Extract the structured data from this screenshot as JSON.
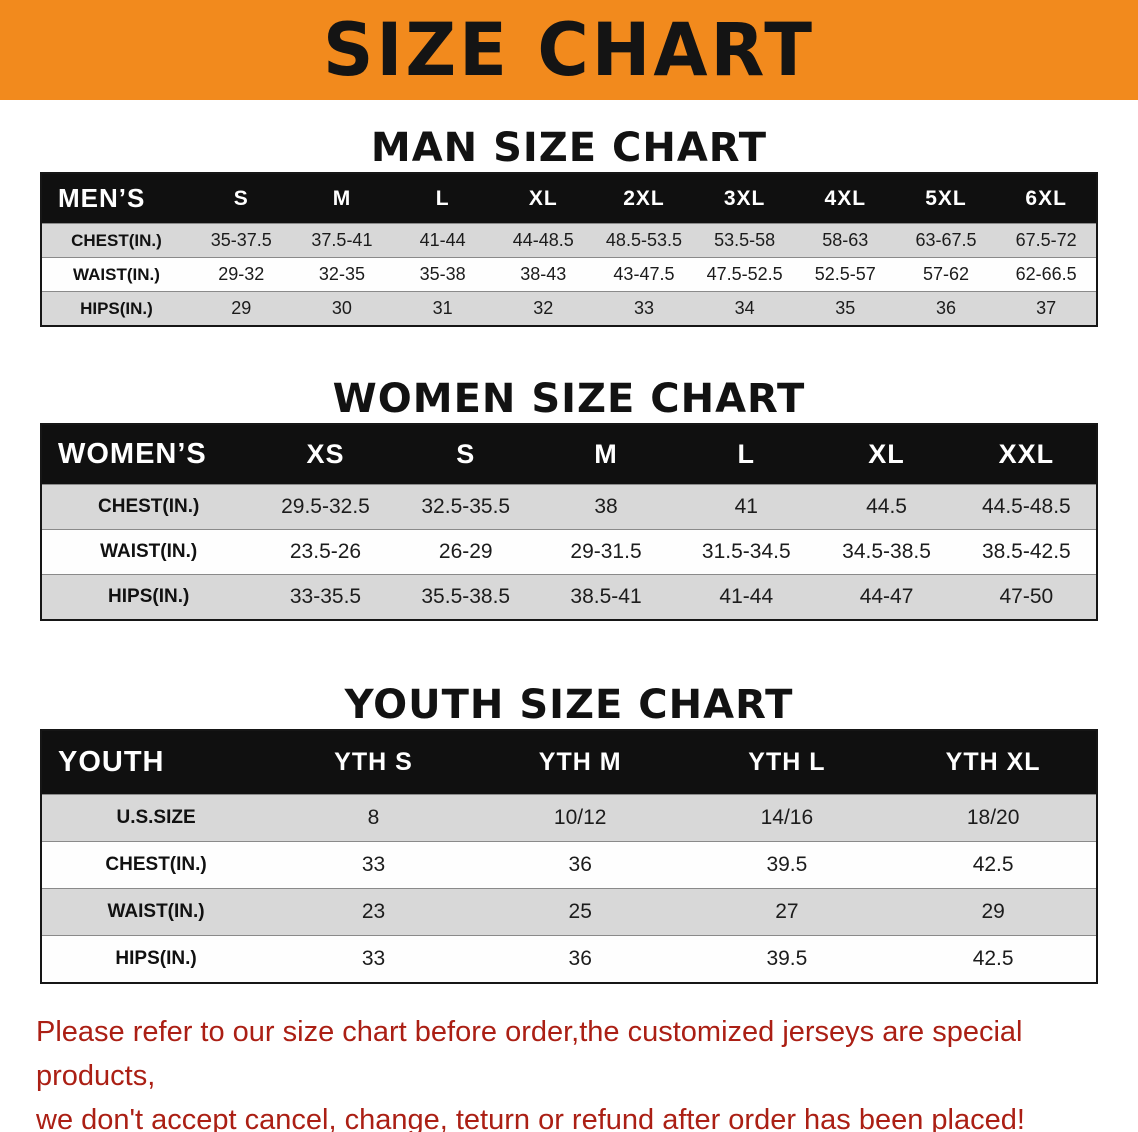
{
  "banner": {
    "title": "SIZE CHART",
    "bg_color": "#f28a1d"
  },
  "sections": {
    "men": {
      "heading": "MAN SIZE CHART",
      "table": {
        "header": [
          "MEN’S",
          "S",
          "M",
          "L",
          "XL",
          "2XL",
          "3XL",
          "4XL",
          "5XL",
          "6XL"
        ],
        "rows": [
          {
            "label": "CHEST(IN.)",
            "values": [
              "35-37.5",
              "37.5-41",
              "41-44",
              "44-48.5",
              "48.5-53.5",
              "53.5-58",
              "58-63",
              "63-67.5",
              "67.5-72"
            ]
          },
          {
            "label": "WAIST(IN.)",
            "values": [
              "29-32",
              "32-35",
              "35-38",
              "38-43",
              "43-47.5",
              "47.5-52.5",
              "52.5-57",
              "57-62",
              "62-66.5"
            ]
          },
          {
            "label": "HIPS(IN.)",
            "values": [
              "29",
              "30",
              "31",
              "32",
              "33",
              "34",
              "35",
              "36",
              "37"
            ]
          }
        ]
      }
    },
    "women": {
      "heading": "WOMEN SIZE CHART",
      "table": {
        "header": [
          "WOMEN’S",
          "XS",
          "S",
          "M",
          "L",
          "XL",
          "XXL"
        ],
        "rows": [
          {
            "label": "CHEST(IN.)",
            "values": [
              "29.5-32.5",
              "32.5-35.5",
              "38",
              "41",
              "44.5",
              "44.5-48.5"
            ]
          },
          {
            "label": "WAIST(IN.)",
            "values": [
              "23.5-26",
              "26-29",
              "29-31.5",
              "31.5-34.5",
              "34.5-38.5",
              "38.5-42.5"
            ]
          },
          {
            "label": "HIPS(IN.)",
            "values": [
              "33-35.5",
              "35.5-38.5",
              "38.5-41",
              "41-44",
              "44-47",
              "47-50"
            ]
          }
        ]
      }
    },
    "youth": {
      "heading": "YOUTH SIZE CHART",
      "table": {
        "header": [
          "YOUTH",
          "YTH S",
          "YTH M",
          "YTH L",
          "YTH XL"
        ],
        "rows": [
          {
            "label": "U.S.SIZE",
            "values": [
              "8",
              "10/12",
              "14/16",
              "18/20"
            ]
          },
          {
            "label": "CHEST(IN.)",
            "values": [
              "33",
              "36",
              "39.5",
              "42.5"
            ]
          },
          {
            "label": "WAIST(IN.)",
            "values": [
              "23",
              "25",
              "27",
              "29"
            ]
          },
          {
            "label": "HIPS(IN.)",
            "values": [
              "33",
              "36",
              "39.5",
              "42.5"
            ]
          }
        ]
      }
    }
  },
  "footer": {
    "color": "#ab1f14",
    "lines": [
      "Please refer to our size chart before order,the customized jerseys are special products,",
      "we don't accept cancel, change, teturn or refund after order has been placed!"
    ]
  }
}
